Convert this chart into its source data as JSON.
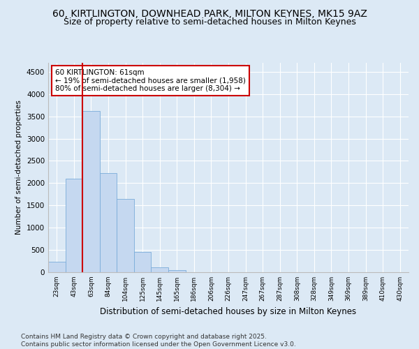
{
  "title": "60, KIRTLINGTON, DOWNHEAD PARK, MILTON KEYNES, MK15 9AZ",
  "subtitle": "Size of property relative to semi-detached houses in Milton Keynes",
  "xlabel": "Distribution of semi-detached houses by size in Milton Keynes",
  "ylabel": "Number of semi-detached properties",
  "categories": [
    "23sqm",
    "43sqm",
    "63sqm",
    "84sqm",
    "104sqm",
    "125sqm",
    "145sqm",
    "165sqm",
    "186sqm",
    "206sqm",
    "226sqm",
    "247sqm",
    "267sqm",
    "287sqm",
    "308sqm",
    "328sqm",
    "349sqm",
    "369sqm",
    "389sqm",
    "410sqm",
    "430sqm"
  ],
  "values": [
    240,
    2100,
    3620,
    2230,
    1640,
    460,
    110,
    40,
    0,
    0,
    0,
    0,
    0,
    0,
    0,
    0,
    0,
    0,
    0,
    0,
    0
  ],
  "bar_color": "#c5d8f0",
  "bar_edge_color": "#7aacda",
  "vline_color": "#cc0000",
  "annotation_title": "60 KIRTLINGTON: 61sqm",
  "annotation_line1": "← 19% of semi-detached houses are smaller (1,958)",
  "annotation_line2": "80% of semi-detached houses are larger (8,304) →",
  "annotation_box_color": "#cc0000",
  "ylim": [
    0,
    4700
  ],
  "yticks": [
    0,
    500,
    1000,
    1500,
    2000,
    2500,
    3000,
    3500,
    4000,
    4500
  ],
  "background_color": "#dce9f5",
  "plot_bg_color": "#dce9f5",
  "footer_line1": "Contains HM Land Registry data © Crown copyright and database right 2025.",
  "footer_line2": "Contains public sector information licensed under the Open Government Licence v3.0.",
  "title_fontsize": 10,
  "subtitle_fontsize": 9,
  "footer_fontsize": 6.5
}
